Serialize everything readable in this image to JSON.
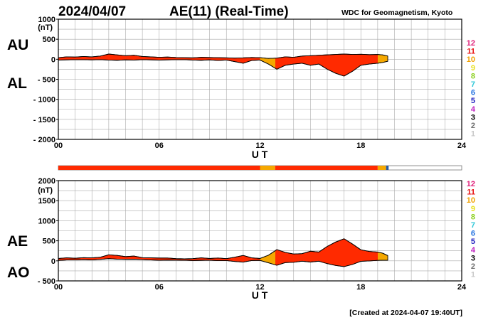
{
  "header": {
    "date": "2024/04/07",
    "title": "AE(11) (Real-Time)",
    "source": "WDC for Geomagnetism, Kyoto"
  },
  "footer": {
    "created": "[Created at 2024-04-07 19:40UT]"
  },
  "colors": {
    "red": "#ff2a00",
    "orange": "#f5a800",
    "blue": "#2a5aa0",
    "grid": "#aaaaaa"
  },
  "station_legend": [
    {
      "label": "12",
      "color": "#e0207a"
    },
    {
      "label": "11",
      "color": "#e81010"
    },
    {
      "label": "10",
      "color": "#f0a000"
    },
    {
      "label": "9",
      "color": "#e8e020"
    },
    {
      "label": "8",
      "color": "#8cd020"
    },
    {
      "label": "7",
      "color": "#30c8d8"
    },
    {
      "label": "6",
      "color": "#2070e0"
    },
    {
      "label": "5",
      "color": "#2020c0"
    },
    {
      "label": "4",
      "color": "#c020c0"
    },
    {
      "label": "3",
      "color": "#000000"
    },
    {
      "label": "2",
      "color": "#707070"
    },
    {
      "label": "1",
      "color": "#c8c8c8"
    }
  ],
  "chart_data": [
    {
      "type": "area",
      "panel": "AU/AL",
      "labels": [
        "AU",
        "AL"
      ],
      "unit_label": "(nT)",
      "xlabel": "U T",
      "xlim": [
        0,
        24
      ],
      "xticks": [
        "00",
        "06",
        "12",
        "18",
        "24"
      ],
      "ylim": [
        -2000,
        1000
      ],
      "yticks": [
        1000,
        500,
        0,
        -500,
        -1000,
        -1500,
        -2000
      ],
      "ytick_labels": [
        "1000",
        "500",
        "0",
        "- 500",
        "- 1000",
        "- 1500",
        "- 2000"
      ],
      "grid": true,
      "x": [
        0,
        0.5,
        1,
        1.5,
        2,
        2.5,
        3,
        3.5,
        4,
        4.5,
        5,
        5.5,
        6,
        6.5,
        7,
        7.5,
        8,
        8.5,
        9,
        9.5,
        10,
        10.5,
        11,
        11.5,
        12,
        12.5,
        13,
        13.5,
        14,
        14.5,
        15,
        15.5,
        16,
        16.5,
        17,
        17.5,
        18,
        18.5,
        19,
        19.3,
        19.6
      ],
      "series": [
        {
          "name": "AU",
          "values": [
            40,
            60,
            55,
            70,
            60,
            80,
            130,
            110,
            90,
            100,
            70,
            60,
            50,
            55,
            45,
            40,
            35,
            50,
            45,
            40,
            35,
            30,
            35,
            45,
            40,
            20,
            30,
            60,
            50,
            80,
            90,
            100,
            110,
            120,
            130,
            120,
            125,
            115,
            120,
            110,
            80
          ]
        },
        {
          "name": "AL",
          "values": [
            -20,
            -15,
            -10,
            -10,
            -15,
            -10,
            -20,
            -25,
            -15,
            -20,
            -10,
            -15,
            -20,
            -15,
            -10,
            -10,
            -20,
            -25,
            -15,
            -30,
            -20,
            -60,
            -100,
            -30,
            -20,
            -120,
            -250,
            -150,
            -120,
            -100,
            -150,
            -120,
            -250,
            -350,
            -420,
            -300,
            -150,
            -120,
            -100,
            -80,
            -50
          ]
        }
      ]
    },
    {
      "type": "area",
      "panel": "AE/AO",
      "labels": [
        "AE",
        "AO"
      ],
      "unit_label": "(nT)",
      "xlabel": "U T",
      "xlim": [
        0,
        24
      ],
      "xticks": [
        "00",
        "06",
        "12",
        "18",
        "24"
      ],
      "ylim": [
        -500,
        2000
      ],
      "yticks": [
        2000,
        1500,
        1000,
        500,
        0,
        -500
      ],
      "ytick_labels": [
        "2000",
        "1500",
        "1000",
        "500",
        "0",
        "- 500"
      ],
      "grid": true,
      "x": [
        0,
        0.5,
        1,
        1.5,
        2,
        2.5,
        3,
        3.5,
        4,
        4.5,
        5,
        5.5,
        6,
        6.5,
        7,
        7.5,
        8,
        8.5,
        9,
        9.5,
        10,
        10.5,
        11,
        11.5,
        12,
        12.5,
        13,
        13.5,
        14,
        14.5,
        15,
        15.5,
        16,
        16.5,
        17,
        17.5,
        18,
        18.5,
        19,
        19.3,
        19.6
      ],
      "series": [
        {
          "name": "AE",
          "values": [
            60,
            75,
            65,
            80,
            75,
            90,
            150,
            135,
            105,
            120,
            80,
            75,
            70,
            70,
            55,
            50,
            55,
            75,
            60,
            70,
            55,
            90,
            135,
            75,
            60,
            140,
            280,
            210,
            170,
            180,
            240,
            220,
            360,
            470,
            550,
            420,
            275,
            235,
            220,
            190,
            130
          ]
        },
        {
          "name": "AO",
          "values": [
            10,
            22,
            22,
            30,
            22,
            35,
            55,
            42,
            37,
            40,
            30,
            22,
            15,
            20,
            17,
            15,
            7,
            12,
            15,
            5,
            7,
            -15,
            -32,
            7,
            10,
            -50,
            -110,
            -45,
            -35,
            -10,
            -30,
            -10,
            -70,
            -115,
            -145,
            -90,
            -12,
            -2,
            10,
            15,
            15
          ]
        }
      ]
    }
  ]
}
